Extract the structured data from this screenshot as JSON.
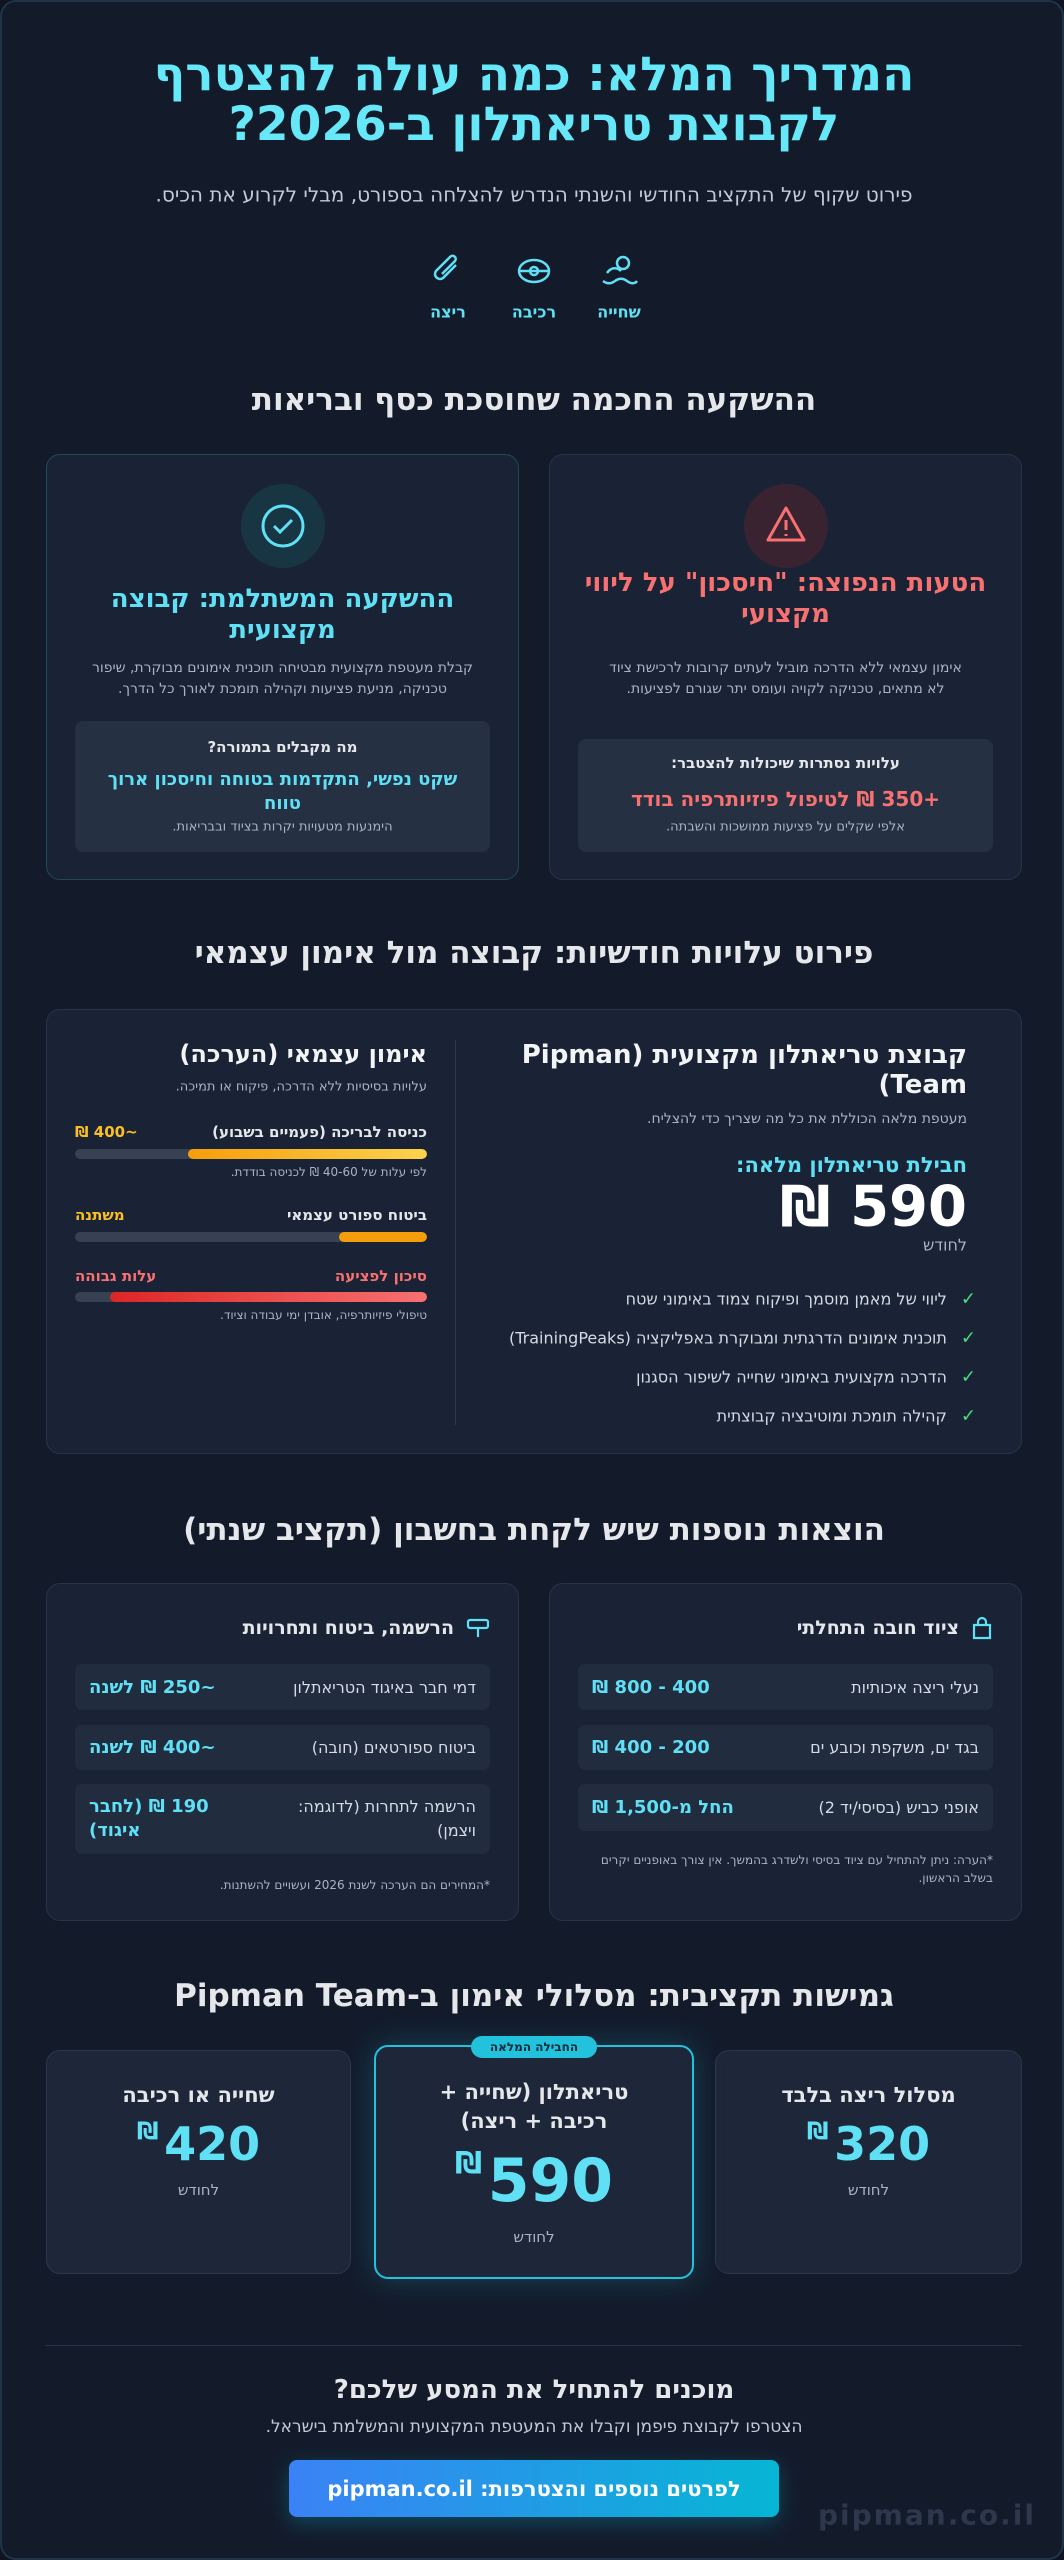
{
  "header": {
    "title": "המדריך המלא: כמה עולה להצטרף לקבוצת טריאתלון ב-2026?",
    "subtitle": "פירוט שקוף של התקציב החודשי והשנתי הנדרש להצלחה בספורט, מבלי לקרוע את הכיס.",
    "icons": [
      {
        "label": "שחייה"
      },
      {
        "label": "רכיבה"
      },
      {
        "label": "ריצה"
      }
    ]
  },
  "section1": {
    "heading": "ההשקעה החכמה שחוסכת כסף ובריאות",
    "cards": [
      {
        "title": "הטעות הנפוצה: \"חיסכון\" על ליווי מקצועי",
        "text": "אימון עצמאי ללא הדרכה מוביל לעתים קרובות לרכישת ציוד לא מתאים, טכניקה לקויה ועומס יתר שגורם לפציעות.",
        "box_title": "עלויות נסתרות שיכולות להצטבר:",
        "box_highlight": "+350 ₪ לטיפול פיזיותרפיה בודד",
        "box_note": "אלפי שקלים על פציעות ממושכות והשבתה."
      },
      {
        "title": "ההשקעה המשתלמת: קבוצה מקצועית",
        "text": "קבלת מעטפת מקצועית מבטיחה תוכנית אימונים מבוקרת, שיפור טכניקה, מניעת פציעות וקהילה תומכת לאורך כל הדרך.",
        "box_title": "מה מקבלים בתמורה?",
        "box_highlight": "שקט נפשי, התקדמות בטוחה וחיסכון ארוך טווח",
        "box_note": "הימנעות מטעויות יקרות בציוד ובבריאות."
      }
    ]
  },
  "section2": {
    "heading": "פירוט עלויות חודשיות: קבוצה מול אימון עצמאי",
    "team": {
      "title": "קבוצת טריאתלון מקצועית (Pipman Team)",
      "subtitle": "מעטפת מלאה הכוללת את כל מה שצריך כדי להצליח.",
      "price_label": "חבילת טריאתלון מלאה:",
      "price": "590 ₪",
      "period": "לחודש",
      "features": [
        "ליווי של מאמן מוסמך ופיקוח צמוד באימוני שטח",
        "תוכנית אימונים הדרגתית ומבוקרת באפליקציה (TrainingPeaks)",
        "הדרכה מקצועית באימוני שחייה לשיפור הסגנון",
        "קהילה תומכת ומוטיבציה קבוצתית"
      ]
    },
    "solo": {
      "title": "אימון עצמאי (הערכה)",
      "subtitle": "עלויות בסיסיות ללא הדרכה, פיקוח או תמיכה.",
      "items": [
        {
          "label": "כניסה לבריכה (פעמיים בשבוע)",
          "value": "~400 ₪",
          "note": "לפי עלות של 40-60 ₪ לכניסה בודדת."
        },
        {
          "label": "ביטוח ספורט עצמאי",
          "value": "משתנה"
        },
        {
          "label": "סיכון לפציעה",
          "value": "עלות גבוהה",
          "note": "טיפולי פיזיותרפיה, אובדן ימי עבודה וציוד."
        }
      ]
    }
  },
  "section3": {
    "heading": "הוצאות נוספות שיש לקחת בחשבון (תקציב שנתי)",
    "cards": [
      {
        "title": "ציוד חובה התחלתי",
        "rows": [
          [
            "נעלי ריצה איכותיות",
            "400 - 800 ₪"
          ],
          [
            "בגד ים, משקפת וכובע ים",
            "200 - 400 ₪"
          ],
          [
            "אופני כביש (בסיסי/יד 2)",
            "החל מ-1,500 ₪"
          ]
        ],
        "note": "*הערה: ניתן להתחיל עם ציוד בסיסי ולשדרג בהמשך. אין צורך באופניים יקרים בשלב הראשון."
      },
      {
        "title": "הרשמה, ביטוח ותחרויות",
        "rows": [
          [
            "דמי חבר באיגוד הטריאתלון",
            "~250 ₪ לשנה"
          ],
          [
            "ביטוח ספורטאים (חובה)",
            "~400 ₪ לשנה"
          ],
          [
            "הרשמה לתחרות (לדוגמה: ויצמן)",
            "190 ₪ (לחבר איגוד)"
          ]
        ],
        "note": "*המחירים הם הערכה לשנת 2026 ועשויים להשתנות."
      }
    ]
  },
  "section4": {
    "heading": "גמישות תקציבית: מסלולי אימון ב-Pipman Team",
    "plans": [
      {
        "name": "מסלול ריצה בלבד",
        "price": "320",
        "currency": "₪",
        "period": "לחודש"
      },
      {
        "badge": "החבילה המלאה",
        "name": "טריאתלון (שחייה + רכיבה + ריצה)",
        "price": "590",
        "currency": "₪",
        "period": "לחודש"
      },
      {
        "name": "שחייה או רכיבה",
        "price": "420",
        "currency": "₪",
        "period": "לחודש"
      }
    ]
  },
  "cta": {
    "heading": "מוכנים להתחיל את המסע שלכם?",
    "text": "הצטרפו לקבוצת פיפמן וקבלו את המעטפת המקצועית והמשלמת בישראל.",
    "button": "לפרטים נוספים והצטרפות: pipman.co.il",
    "watermark": "pipman.co.il"
  }
}
